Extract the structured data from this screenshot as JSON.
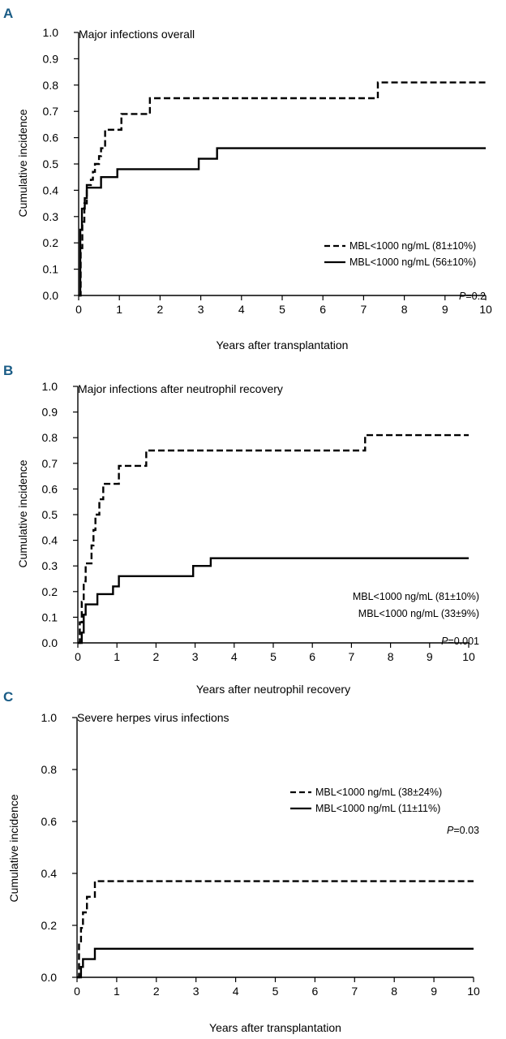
{
  "colors": {
    "ink": "#000000",
    "panel_label": "#1a5c86",
    "background": "#ffffff"
  },
  "chart_data": [
    {
      "type": "line",
      "panel_label": "A",
      "title": "Major infections overall",
      "xlabel": "Years after transplantation",
      "ylabel": "Cumulative incidence",
      "xlim": [
        0,
        10
      ],
      "ylim": [
        0,
        1.0
      ],
      "xticks": [
        "0",
        "1",
        "2",
        "3",
        "4",
        "5",
        "6",
        "7",
        "8",
        "9",
        "10"
      ],
      "yticks": [
        "0.0",
        "0.1",
        "0.2",
        "0.3",
        "0.4",
        "0.5",
        "0.6",
        "0.7",
        "0.8",
        "0.9",
        "1.0"
      ],
      "legend_position": "bottom-right",
      "p_value": {
        "prefix": "P",
        "rest": "=0.2"
      },
      "series": [
        {
          "name": "MBL<1000 ng/mL (81±10%)",
          "style": "dashed",
          "steps": [
            [
              0,
              0
            ],
            [
              0.05,
              0.18
            ],
            [
              0.09,
              0.28
            ],
            [
              0.14,
              0.35
            ],
            [
              0.2,
              0.42
            ],
            [
              0.3,
              0.44
            ],
            [
              0.35,
              0.47
            ],
            [
              0.4,
              0.5
            ],
            [
              0.5,
              0.53
            ],
            [
              0.55,
              0.56
            ],
            [
              0.65,
              0.63
            ],
            [
              1.05,
              0.69
            ],
            [
              1.75,
              0.75
            ],
            [
              7.35,
              0.81
            ],
            [
              10,
              0.81
            ]
          ]
        },
        {
          "name": "MBL<1000 ng/mL (56±10%)",
          "style": "solid",
          "steps": [
            [
              0,
              0
            ],
            [
              0.04,
              0.25
            ],
            [
              0.08,
              0.33
            ],
            [
              0.15,
              0.37
            ],
            [
              0.2,
              0.41
            ],
            [
              0.55,
              0.45
            ],
            [
              0.95,
              0.48
            ],
            [
              2.95,
              0.52
            ],
            [
              3.4,
              0.56
            ],
            [
              10,
              0.56
            ]
          ]
        }
      ]
    },
    {
      "type": "line",
      "panel_label": "B",
      "title": "Major infections after neutrophil recovery",
      "xlabel": "Years after neutrophil recovery",
      "ylabel": "Cumulative incidence",
      "xlim": [
        0,
        10
      ],
      "ylim": [
        0,
        1.0
      ],
      "xticks": [
        "0",
        "1",
        "2",
        "3",
        "4",
        "5",
        "6",
        "7",
        "8",
        "9",
        "10"
      ],
      "yticks": [
        "0.0",
        "0.1",
        "0.2",
        "0.3",
        "0.4",
        "0.5",
        "0.6",
        "0.7",
        "0.8",
        "0.9",
        "1.0"
      ],
      "legend_position": "bottom-right",
      "p_value": {
        "prefix": "P",
        "rest": "=0.001"
      },
      "series": [
        {
          "name": "MBL<1000 ng/mL (81±10%)",
          "style": "dashed",
          "steps": [
            [
              0,
              0
            ],
            [
              0.05,
              0.08
            ],
            [
              0.1,
              0.16
            ],
            [
              0.15,
              0.24
            ],
            [
              0.2,
              0.31
            ],
            [
              0.35,
              0.38
            ],
            [
              0.4,
              0.44
            ],
            [
              0.45,
              0.5
            ],
            [
              0.55,
              0.56
            ],
            [
              0.65,
              0.62
            ],
            [
              1.05,
              0.69
            ],
            [
              1.75,
              0.75
            ],
            [
              7.35,
              0.81
            ],
            [
              10,
              0.81
            ]
          ]
        },
        {
          "name": "MBL<1000 ng/mL (33±9%)",
          "style": "solid",
          "steps": [
            [
              0,
              0
            ],
            [
              0.1,
              0.04
            ],
            [
              0.15,
              0.11
            ],
            [
              0.2,
              0.15
            ],
            [
              0.5,
              0.19
            ],
            [
              0.9,
              0.22
            ],
            [
              1.05,
              0.26
            ],
            [
              2.95,
              0.3
            ],
            [
              3.4,
              0.33
            ],
            [
              10,
              0.33
            ]
          ]
        }
      ]
    },
    {
      "type": "line",
      "panel_label": "C",
      "title": "Severe herpes virus infections",
      "xlabel": "Years after transplantation",
      "ylabel": "Cumulative incidence",
      "xlim": [
        0,
        10
      ],
      "ylim": [
        0,
        1.0
      ],
      "xticks": [
        "0",
        "1",
        "2",
        "3",
        "4",
        "5",
        "6",
        "7",
        "8",
        "9",
        "10"
      ],
      "yticks": [
        "0.0",
        "0.2",
        "0.4",
        "0.6",
        "0.8",
        "1.0"
      ],
      "legend_position": "top-right",
      "p_value": {
        "prefix": "P",
        "rest": "=0.03"
      },
      "series": [
        {
          "name": "MBL<1000 ng/mL (38±24%)",
          "style": "dashed",
          "steps": [
            [
              0,
              0
            ],
            [
              0.05,
              0.13
            ],
            [
              0.1,
              0.19
            ],
            [
              0.15,
              0.25
            ],
            [
              0.25,
              0.31
            ],
            [
              0.45,
              0.37
            ],
            [
              10,
              0.37
            ]
          ]
        },
        {
          "name": "MBL<1000 ng/mL (11±11%)",
          "style": "solid",
          "steps": [
            [
              0,
              0
            ],
            [
              0.1,
              0.04
            ],
            [
              0.15,
              0.07
            ],
            [
              0.45,
              0.11
            ],
            [
              10,
              0.11
            ]
          ]
        }
      ]
    }
  ]
}
